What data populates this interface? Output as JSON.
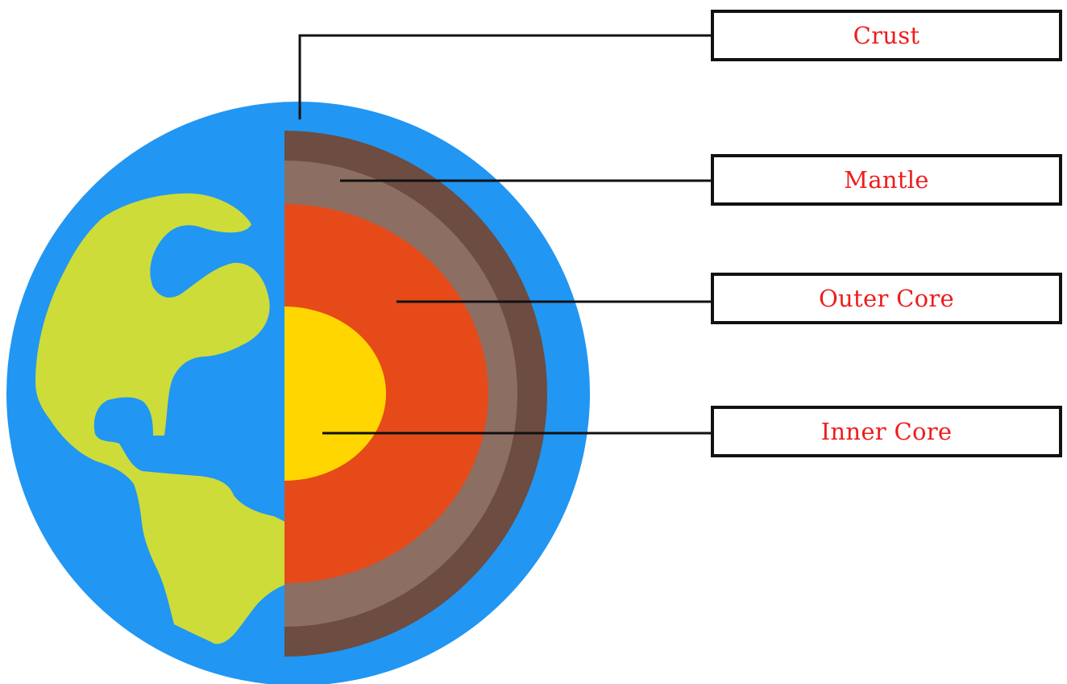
{
  "labels": {
    "crust": "Crust",
    "mantle": "Mantle",
    "outer_core": "Outer Core",
    "inner_core": "Inner Core"
  },
  "colors": {
    "ocean": "#2196f3",
    "land": "#cddc39",
    "crust": "#6d4c41",
    "mantle": "#8d6e63",
    "outer_core": "#e64a19",
    "inner_core": "#ffd600",
    "label_text": "#ee1c1c",
    "leader_line": "#111111"
  }
}
